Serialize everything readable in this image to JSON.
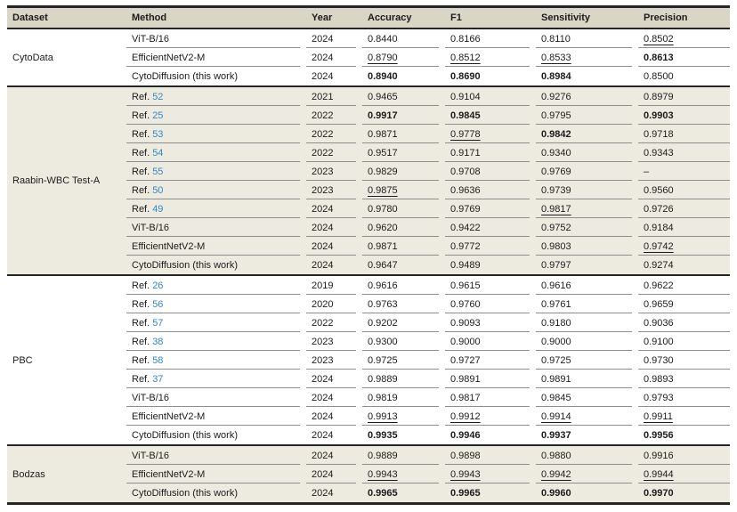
{
  "colors": {
    "header_bg": "#d9d6c6",
    "shaded_bg": "#edebdf",
    "row_line": "#8e8e8e",
    "section_line": "#262626",
    "text": "#1c1c1c",
    "ref_link": "#3487c7"
  },
  "table": {
    "columns": [
      "Dataset",
      "Method",
      "Year",
      "Accuracy",
      "F1",
      "Sensitivity",
      "Precision"
    ],
    "ref_prefix": "Ref.",
    "sections": [
      {
        "dataset": "CytoData",
        "shaded": false,
        "rows": [
          {
            "method": "ViT-B/16",
            "year": "2024",
            "metrics": [
              [
                "0.8440",
                "n"
              ],
              [
                "0.8166",
                "n"
              ],
              [
                "0.8110",
                "n"
              ],
              [
                "0.8502",
                "u"
              ]
            ]
          },
          {
            "method": "EfficientNetV2-M",
            "year": "2024",
            "metrics": [
              [
                "0.8790",
                "u"
              ],
              [
                "0.8512",
                "u"
              ],
              [
                "0.8533",
                "u"
              ],
              [
                "0.8613",
                "b"
              ]
            ]
          },
          {
            "method": "CytoDiffusion (this work)",
            "year": "2024",
            "metrics": [
              [
                "0.8940",
                "b"
              ],
              [
                "0.8690",
                "b"
              ],
              [
                "0.8984",
                "b"
              ],
              [
                "0.8500",
                "n"
              ]
            ]
          }
        ]
      },
      {
        "dataset": "Raabin-WBC Test-A",
        "shaded": true,
        "rows": [
          {
            "ref": "52",
            "year": "2021",
            "metrics": [
              [
                "0.9465",
                "n"
              ],
              [
                "0.9104",
                "n"
              ],
              [
                "0.9276",
                "n"
              ],
              [
                "0.8979",
                "n"
              ]
            ]
          },
          {
            "ref": "25",
            "year": "2022",
            "metrics": [
              [
                "0.9917",
                "b"
              ],
              [
                "0.9845",
                "b"
              ],
              [
                "0.9795",
                "n"
              ],
              [
                "0.9903",
                "b"
              ]
            ]
          },
          {
            "ref": "53",
            "year": "2022",
            "metrics": [
              [
                "0.9871",
                "n"
              ],
              [
                "0.9778",
                "u"
              ],
              [
                "0.9842",
                "b"
              ],
              [
                "0.9718",
                "n"
              ]
            ]
          },
          {
            "ref": "54",
            "year": "2022",
            "metrics": [
              [
                "0.9517",
                "n"
              ],
              [
                "0.9171",
                "n"
              ],
              [
                "0.9340",
                "n"
              ],
              [
                "0.9343",
                "n"
              ]
            ]
          },
          {
            "ref": "55",
            "year": "2023",
            "metrics": [
              [
                "0.9829",
                "n"
              ],
              [
                "0.9708",
                "n"
              ],
              [
                "0.9769",
                "n"
              ],
              [
                "–",
                "n"
              ]
            ]
          },
          {
            "ref": "50",
            "year": "2023",
            "metrics": [
              [
                "0.9875",
                "u"
              ],
              [
                "0.9636",
                "n"
              ],
              [
                "0.9739",
                "n"
              ],
              [
                "0.9560",
                "n"
              ]
            ]
          },
          {
            "ref": "49",
            "year": "2024",
            "metrics": [
              [
                "0.9780",
                "n"
              ],
              [
                "0.9769",
                "n"
              ],
              [
                "0.9817",
                "u"
              ],
              [
                "0.9726",
                "n"
              ]
            ]
          },
          {
            "method": "ViT-B/16",
            "year": "2024",
            "metrics": [
              [
                "0.9620",
                "n"
              ],
              [
                "0.9422",
                "n"
              ],
              [
                "0.9752",
                "n"
              ],
              [
                "0.9184",
                "n"
              ]
            ]
          },
          {
            "method": "EfficientNetV2-M",
            "year": "2024",
            "metrics": [
              [
                "0.9871",
                "n"
              ],
              [
                "0.9772",
                "n"
              ],
              [
                "0.9803",
                "n"
              ],
              [
                "0.9742",
                "u"
              ]
            ]
          },
          {
            "method": "CytoDiffusion (this work)",
            "year": "2024",
            "metrics": [
              [
                "0.9647",
                "n"
              ],
              [
                "0.9489",
                "n"
              ],
              [
                "0.9797",
                "n"
              ],
              [
                "0.9274",
                "n"
              ]
            ]
          }
        ]
      },
      {
        "dataset": "PBC",
        "shaded": false,
        "rows": [
          {
            "ref": "26",
            "year": "2019",
            "metrics": [
              [
                "0.9616",
                "n"
              ],
              [
                "0.9615",
                "n"
              ],
              [
                "0.9616",
                "n"
              ],
              [
                "0.9622",
                "n"
              ]
            ]
          },
          {
            "ref": "56",
            "year": "2020",
            "metrics": [
              [
                "0.9763",
                "n"
              ],
              [
                "0.9760",
                "n"
              ],
              [
                "0.9761",
                "n"
              ],
              [
                "0.9659",
                "n"
              ]
            ]
          },
          {
            "ref": "57",
            "year": "2022",
            "metrics": [
              [
                "0.9202",
                "n"
              ],
              [
                "0.9093",
                "n"
              ],
              [
                "0.9180",
                "n"
              ],
              [
                "0.9036",
                "n"
              ]
            ]
          },
          {
            "ref": "38",
            "year": "2023",
            "metrics": [
              [
                "0.9300",
                "n"
              ],
              [
                "0.9000",
                "n"
              ],
              [
                "0.9000",
                "n"
              ],
              [
                "0.9100",
                "n"
              ]
            ]
          },
          {
            "ref": "58",
            "year": "2023",
            "metrics": [
              [
                "0.9725",
                "n"
              ],
              [
                "0.9727",
                "n"
              ],
              [
                "0.9725",
                "n"
              ],
              [
                "0.9730",
                "n"
              ]
            ]
          },
          {
            "ref": "37",
            "year": "2024",
            "metrics": [
              [
                "0.9889",
                "n"
              ],
              [
                "0.9891",
                "n"
              ],
              [
                "0.9891",
                "n"
              ],
              [
                "0.9893",
                "n"
              ]
            ]
          },
          {
            "method": "ViT-B/16",
            "year": "2024",
            "metrics": [
              [
                "0.9819",
                "n"
              ],
              [
                "0.9817",
                "n"
              ],
              [
                "0.9845",
                "n"
              ],
              [
                "0.9793",
                "n"
              ]
            ]
          },
          {
            "method": "EfficientNetV2-M",
            "year": "2024",
            "metrics": [
              [
                "0.9913",
                "u"
              ],
              [
                "0.9912",
                "u"
              ],
              [
                "0.9914",
                "u"
              ],
              [
                "0.9911",
                "u"
              ]
            ]
          },
          {
            "method": "CytoDiffusion (this work)",
            "year": "2024",
            "metrics": [
              [
                "0.9935",
                "b"
              ],
              [
                "0.9946",
                "b"
              ],
              [
                "0.9937",
                "b"
              ],
              [
                "0.9956",
                "b"
              ]
            ]
          }
        ]
      },
      {
        "dataset": "Bodzas",
        "shaded": true,
        "rows": [
          {
            "method": "ViT-B/16",
            "year": "2024",
            "metrics": [
              [
                "0.9889",
                "n"
              ],
              [
                "0.9898",
                "n"
              ],
              [
                "0.9880",
                "n"
              ],
              [
                "0.9916",
                "n"
              ]
            ]
          },
          {
            "method": "EfficientNetV2-M",
            "year": "2024",
            "metrics": [
              [
                "0.9943",
                "u"
              ],
              [
                "0.9943",
                "u"
              ],
              [
                "0.9942",
                "u"
              ],
              [
                "0.9944",
                "u"
              ]
            ]
          },
          {
            "method": "CytoDiffusion (this work)",
            "year": "2024",
            "metrics": [
              [
                "0.9965",
                "b"
              ],
              [
                "0.9965",
                "b"
              ],
              [
                "0.9960",
                "b"
              ],
              [
                "0.9970",
                "b"
              ]
            ]
          }
        ]
      }
    ]
  }
}
